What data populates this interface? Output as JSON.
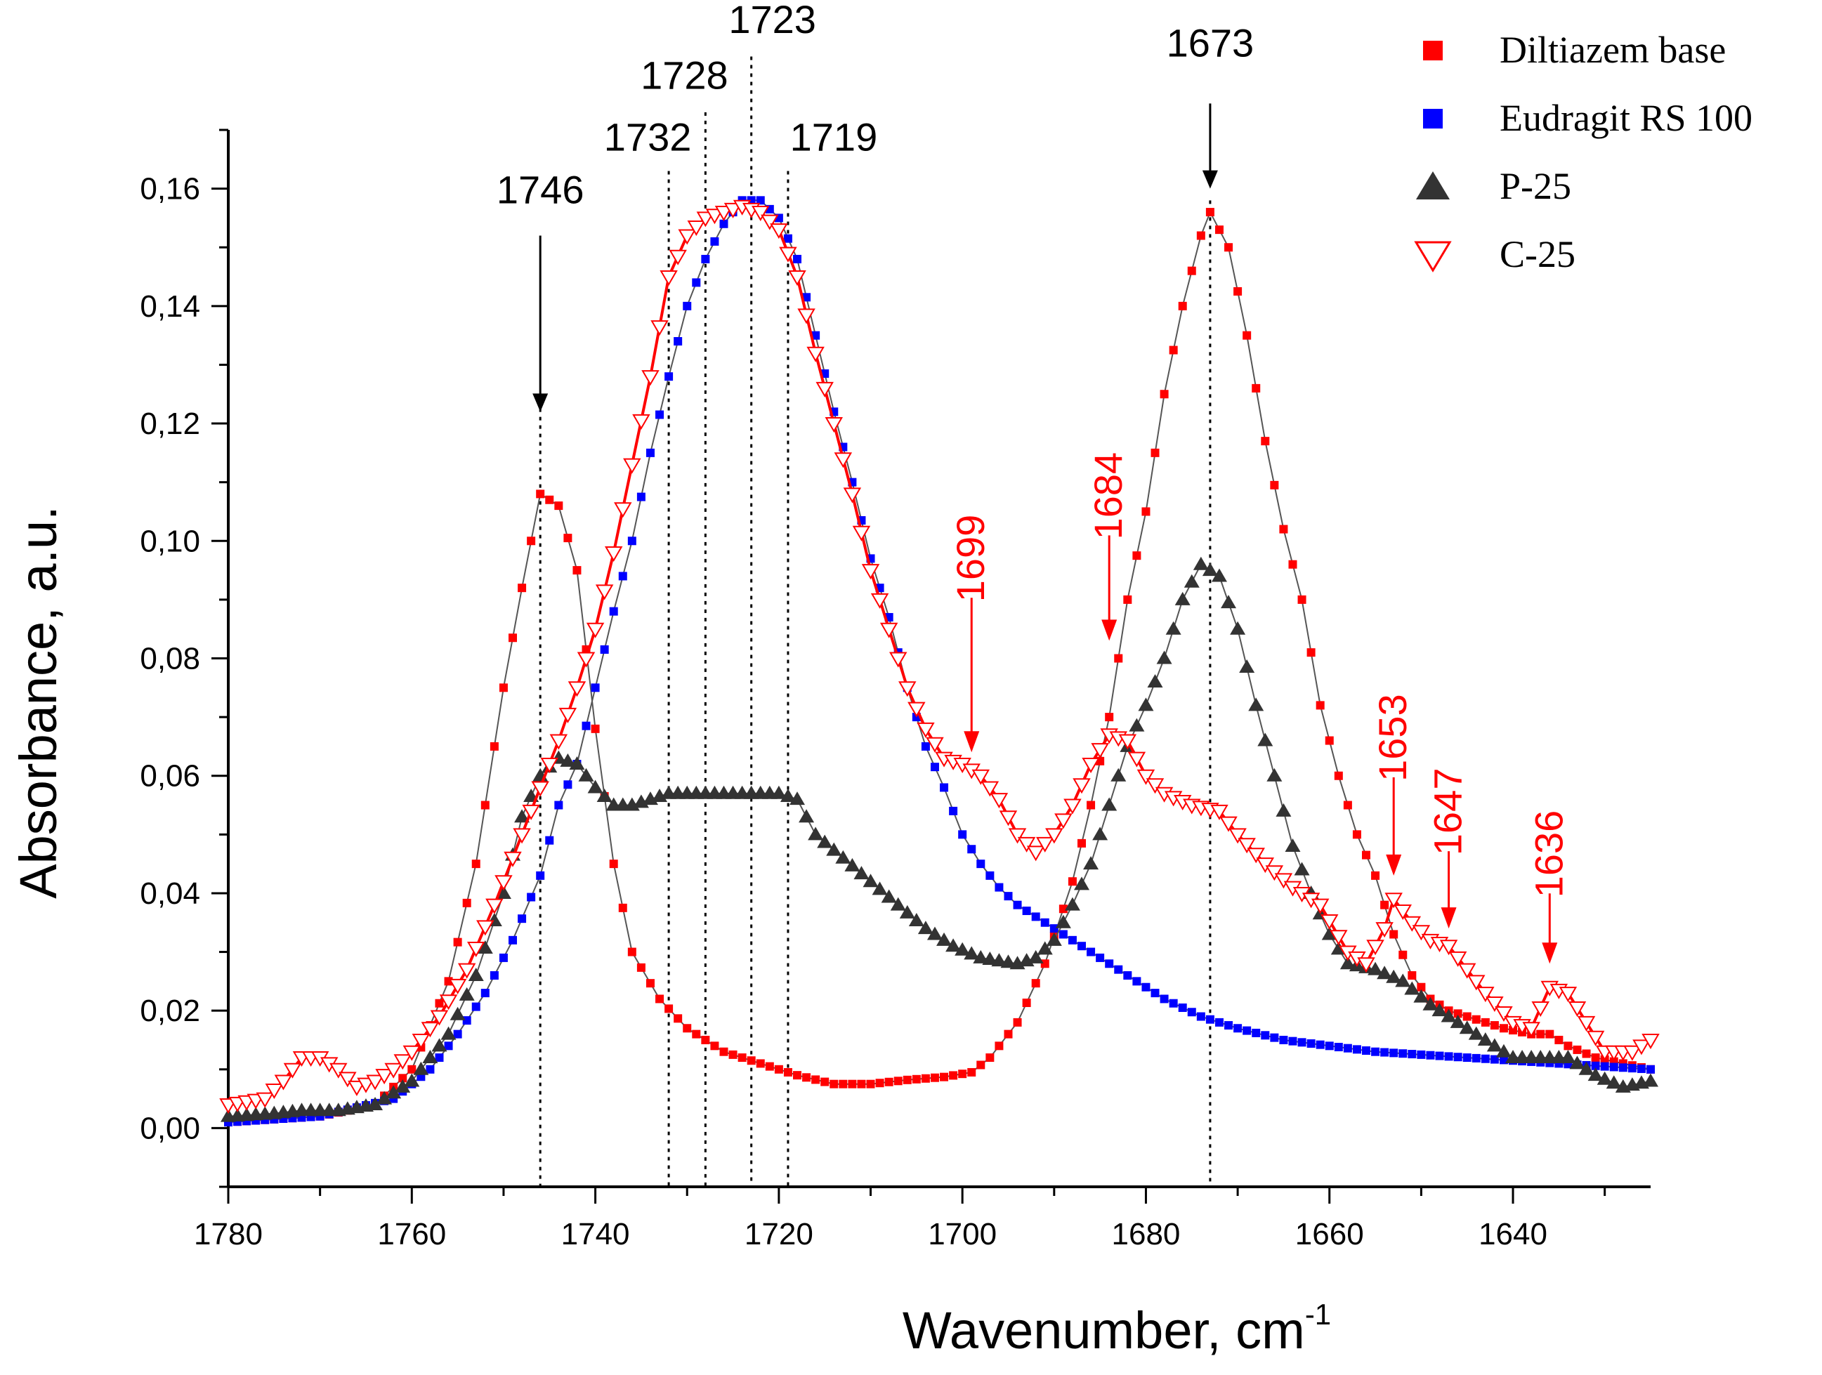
{
  "chart_data": {
    "type": "scatter",
    "xlabel": "Wavenumber, cm",
    "xlabel_sup": "-1",
    "ylabel": "Absorbance, a.u.",
    "xlim": [
      1780,
      1625
    ],
    "ylim": [
      -0.01,
      0.17
    ],
    "x_ticks": [
      1780,
      1760,
      1740,
      1720,
      1700,
      1680,
      1660,
      1640
    ],
    "x_tick_labels": [
      "1780",
      "1760",
      "1740",
      "1720",
      "1700",
      "1680",
      "1660",
      "1640"
    ],
    "y_ticks": [
      0.0,
      0.02,
      0.04,
      0.06,
      0.08,
      0.1,
      0.12,
      0.14,
      0.16
    ],
    "y_tick_labels": [
      "0,00",
      "0,02",
      "0,04",
      "0,06",
      "0,08",
      "0,10",
      "0,12",
      "0,14",
      "0,16"
    ],
    "legend_position": "top-right",
    "series": [
      {
        "name": "Diltiazem base",
        "color": "#ff0000",
        "marker": "square",
        "points": [
          [
            1780,
            0.001
          ],
          [
            1770,
            0.002
          ],
          [
            1764,
            0.004
          ],
          [
            1760,
            0.01
          ],
          [
            1756,
            0.025
          ],
          [
            1753,
            0.045
          ],
          [
            1750,
            0.075
          ],
          [
            1748,
            0.092
          ],
          [
            1746,
            0.108
          ],
          [
            1744,
            0.106
          ],
          [
            1742,
            0.095
          ],
          [
            1740,
            0.068
          ],
          [
            1738,
            0.045
          ],
          [
            1736,
            0.03
          ],
          [
            1733,
            0.022
          ],
          [
            1730,
            0.017
          ],
          [
            1726,
            0.013
          ],
          [
            1722,
            0.011
          ],
          [
            1718,
            0.009
          ],
          [
            1714,
            0.0075
          ],
          [
            1710,
            0.0075
          ],
          [
            1706,
            0.0082
          ],
          [
            1702,
            0.0087
          ],
          [
            1699,
            0.0095
          ],
          [
            1697,
            0.012
          ],
          [
            1694,
            0.018
          ],
          [
            1691,
            0.028
          ],
          [
            1688,
            0.042
          ],
          [
            1686,
            0.055
          ],
          [
            1684,
            0.07
          ],
          [
            1682,
            0.09
          ],
          [
            1680,
            0.105
          ],
          [
            1678,
            0.125
          ],
          [
            1676,
            0.14
          ],
          [
            1674,
            0.152
          ],
          [
            1673,
            0.156
          ],
          [
            1671,
            0.15
          ],
          [
            1669,
            0.135
          ],
          [
            1667,
            0.117
          ],
          [
            1665,
            0.102
          ],
          [
            1663,
            0.09
          ],
          [
            1661,
            0.072
          ],
          [
            1659,
            0.06
          ],
          [
            1657,
            0.05
          ],
          [
            1655,
            0.043
          ],
          [
            1653,
            0.033
          ],
          [
            1651,
            0.026
          ],
          [
            1649,
            0.022
          ],
          [
            1647,
            0.02
          ],
          [
            1645,
            0.019
          ],
          [
            1643,
            0.018
          ],
          [
            1641,
            0.017
          ],
          [
            1638,
            0.016
          ],
          [
            1636,
            0.016
          ],
          [
            1634,
            0.014
          ],
          [
            1631,
            0.012
          ],
          [
            1628,
            0.011
          ],
          [
            1625,
            0.01
          ]
        ]
      },
      {
        "name": "Eudragit RS 100",
        "color": "#0000ff",
        "marker": "square",
        "points": [
          [
            1780,
            0.001
          ],
          [
            1770,
            0.002
          ],
          [
            1762,
            0.005
          ],
          [
            1758,
            0.01
          ],
          [
            1755,
            0.016
          ],
          [
            1752,
            0.023
          ],
          [
            1749,
            0.032
          ],
          [
            1746,
            0.043
          ],
          [
            1744,
            0.055
          ],
          [
            1742,
            0.062
          ],
          [
            1740,
            0.075
          ],
          [
            1738,
            0.088
          ],
          [
            1736,
            0.1
          ],
          [
            1734,
            0.115
          ],
          [
            1732,
            0.128
          ],
          [
            1730,
            0.14
          ],
          [
            1728,
            0.148
          ],
          [
            1726,
            0.154
          ],
          [
            1724,
            0.158
          ],
          [
            1722,
            0.158
          ],
          [
            1720,
            0.155
          ],
          [
            1718,
            0.148
          ],
          [
            1716,
            0.135
          ],
          [
            1714,
            0.122
          ],
          [
            1712,
            0.11
          ],
          [
            1710,
            0.097
          ],
          [
            1708,
            0.087
          ],
          [
            1706,
            0.075
          ],
          [
            1704,
            0.065
          ],
          [
            1702,
            0.058
          ],
          [
            1700,
            0.05
          ],
          [
            1698,
            0.045
          ],
          [
            1696,
            0.041
          ],
          [
            1694,
            0.038
          ],
          [
            1690,
            0.034
          ],
          [
            1686,
            0.03
          ],
          [
            1682,
            0.026
          ],
          [
            1678,
            0.022
          ],
          [
            1674,
            0.019
          ],
          [
            1670,
            0.017
          ],
          [
            1665,
            0.015
          ],
          [
            1660,
            0.014
          ],
          [
            1655,
            0.013
          ],
          [
            1650,
            0.0125
          ],
          [
            1645,
            0.012
          ],
          [
            1640,
            0.0115
          ],
          [
            1635,
            0.011
          ],
          [
            1630,
            0.0105
          ],
          [
            1625,
            0.01
          ]
        ]
      },
      {
        "name": "P-25",
        "color": "#333333",
        "marker": "triangle-up",
        "points": [
          [
            1780,
            0.002
          ],
          [
            1775,
            0.0025
          ],
          [
            1772,
            0.003
          ],
          [
            1768,
            0.003
          ],
          [
            1764,
            0.004
          ],
          [
            1760,
            0.008
          ],
          [
            1756,
            0.016
          ],
          [
            1753,
            0.026
          ],
          [
            1750,
            0.04
          ],
          [
            1748,
            0.053
          ],
          [
            1746,
            0.06
          ],
          [
            1744,
            0.063
          ],
          [
            1742,
            0.062
          ],
          [
            1740,
            0.058
          ],
          [
            1738,
            0.055
          ],
          [
            1736,
            0.055
          ],
          [
            1734,
            0.056
          ],
          [
            1732,
            0.057
          ],
          [
            1728,
            0.057
          ],
          [
            1724,
            0.057
          ],
          [
            1720,
            0.057
          ],
          [
            1718,
            0.056
          ],
          [
            1716,
            0.05
          ],
          [
            1713,
            0.046
          ],
          [
            1710,
            0.042
          ],
          [
            1707,
            0.038
          ],
          [
            1704,
            0.034
          ],
          [
            1701,
            0.031
          ],
          [
            1698,
            0.029
          ],
          [
            1694,
            0.028
          ],
          [
            1692,
            0.029
          ],
          [
            1690,
            0.032
          ],
          [
            1688,
            0.038
          ],
          [
            1686,
            0.045
          ],
          [
            1684,
            0.055
          ],
          [
            1682,
            0.065
          ],
          [
            1680,
            0.072
          ],
          [
            1678,
            0.08
          ],
          [
            1676,
            0.09
          ],
          [
            1674,
            0.096
          ],
          [
            1672,
            0.094
          ],
          [
            1670,
            0.085
          ],
          [
            1668,
            0.072
          ],
          [
            1666,
            0.06
          ],
          [
            1664,
            0.048
          ],
          [
            1662,
            0.04
          ],
          [
            1660,
            0.033
          ],
          [
            1658,
            0.028
          ],
          [
            1655,
            0.027
          ],
          [
            1652,
            0.025
          ],
          [
            1649,
            0.021
          ],
          [
            1646,
            0.018
          ],
          [
            1643,
            0.015
          ],
          [
            1640,
            0.012
          ],
          [
            1637,
            0.012
          ],
          [
            1634,
            0.012
          ],
          [
            1631,
            0.009
          ],
          [
            1628,
            0.007
          ],
          [
            1625,
            0.008
          ]
        ]
      },
      {
        "name": "C-25",
        "color": "#ff0000",
        "marker": "triangle-down-open",
        "points": [
          [
            1780,
            0.004
          ],
          [
            1776,
            0.005
          ],
          [
            1774,
            0.008
          ],
          [
            1772,
            0.012
          ],
          [
            1770,
            0.012
          ],
          [
            1768,
            0.01
          ],
          [
            1766,
            0.007
          ],
          [
            1764,
            0.008
          ],
          [
            1762,
            0.01
          ],
          [
            1760,
            0.013
          ],
          [
            1757,
            0.019
          ],
          [
            1754,
            0.027
          ],
          [
            1751,
            0.038
          ],
          [
            1748,
            0.05
          ],
          [
            1746,
            0.058
          ],
          [
            1744,
            0.066
          ],
          [
            1742,
            0.075
          ],
          [
            1740,
            0.085
          ],
          [
            1738,
            0.098
          ],
          [
            1736,
            0.113
          ],
          [
            1734,
            0.128
          ],
          [
            1732,
            0.145
          ],
          [
            1730,
            0.152
          ],
          [
            1728,
            0.155
          ],
          [
            1726,
            0.156
          ],
          [
            1724,
            0.157
          ],
          [
            1722,
            0.156
          ],
          [
            1720,
            0.153
          ],
          [
            1718,
            0.145
          ],
          [
            1716,
            0.132
          ],
          [
            1714,
            0.12
          ],
          [
            1712,
            0.108
          ],
          [
            1710,
            0.095
          ],
          [
            1708,
            0.085
          ],
          [
            1706,
            0.075
          ],
          [
            1704,
            0.068
          ],
          [
            1702,
            0.063
          ],
          [
            1700,
            0.062
          ],
          [
            1698,
            0.06
          ],
          [
            1696,
            0.056
          ],
          [
            1694,
            0.05
          ],
          [
            1692,
            0.047
          ],
          [
            1690,
            0.05
          ],
          [
            1688,
            0.055
          ],
          [
            1686,
            0.062
          ],
          [
            1684,
            0.067
          ],
          [
            1682,
            0.066
          ],
          [
            1680,
            0.06
          ],
          [
            1678,
            0.057
          ],
          [
            1675,
            0.055
          ],
          [
            1672,
            0.054
          ],
          [
            1670,
            0.05
          ],
          [
            1667,
            0.045
          ],
          [
            1664,
            0.041
          ],
          [
            1661,
            0.038
          ],
          [
            1658,
            0.03
          ],
          [
            1656,
            0.028
          ],
          [
            1654,
            0.034
          ],
          [
            1653,
            0.039
          ],
          [
            1651,
            0.035
          ],
          [
            1649,
            0.032
          ],
          [
            1647,
            0.031
          ],
          [
            1645,
            0.027
          ],
          [
            1643,
            0.023
          ],
          [
            1640,
            0.018
          ],
          [
            1638,
            0.017
          ],
          [
            1636,
            0.024
          ],
          [
            1634,
            0.023
          ],
          [
            1632,
            0.018
          ],
          [
            1630,
            0.013
          ],
          [
            1627,
            0.013
          ],
          [
            1625,
            0.015
          ]
        ]
      }
    ],
    "vlines": [
      1746,
      1732,
      1728,
      1723,
      1719,
      1673
    ],
    "annotations": {
      "black": [
        {
          "text": "1746",
          "x": 1746,
          "arrow": true
        },
        {
          "text": "1732",
          "x": 1732,
          "arrow": false
        },
        {
          "text": "1728",
          "x": 1728,
          "arrow": false
        },
        {
          "text": "1723",
          "x": 1723,
          "arrow": false
        },
        {
          "text": "1719",
          "x": 1719,
          "arrow": false
        },
        {
          "text": "1673",
          "x": 1673,
          "arrow": true
        }
      ],
      "red": [
        {
          "text": "1699",
          "x": 1699,
          "y": 0.064
        },
        {
          "text": "1684",
          "x": 1684,
          "y": 0.083
        },
        {
          "text": "1653",
          "x": 1653,
          "y": 0.043
        },
        {
          "text": "1647",
          "x": 1647,
          "y": 0.034
        },
        {
          "text": "1636",
          "x": 1636,
          "y": 0.028
        }
      ]
    }
  }
}
